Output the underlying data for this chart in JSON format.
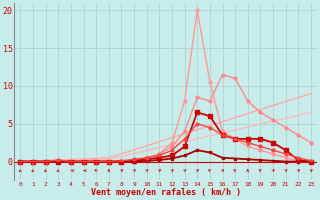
{
  "xlabel": "Vent moyen/en rafales ( km/h )",
  "xlim": [
    -0.5,
    23.5
  ],
  "ylim": [
    -2.5,
    21
  ],
  "yticks": [
    0,
    5,
    10,
    15,
    20
  ],
  "xticks": [
    0,
    1,
    2,
    3,
    4,
    5,
    6,
    7,
    8,
    9,
    10,
    11,
    12,
    13,
    14,
    15,
    16,
    17,
    18,
    19,
    20,
    21,
    22,
    23
  ],
  "bg_color": "#c8ecea",
  "grid_color": "#a8d0ce",
  "lines": [
    {
      "x": [
        0,
        7,
        23
      ],
      "y": [
        0,
        0.5,
        9.0
      ],
      "color": "#ffaaaa",
      "lw": 1.0,
      "marker": null,
      "ms": 0,
      "alpha": 1.0
    },
    {
      "x": [
        0,
        7,
        23
      ],
      "y": [
        0,
        0.3,
        6.5
      ],
      "color": "#ffbbbb",
      "lw": 1.0,
      "marker": null,
      "ms": 0,
      "alpha": 1.0
    },
    {
      "x": [
        0,
        1,
        2,
        3,
        4,
        5,
        6,
        7,
        8,
        9,
        10,
        11,
        12,
        13,
        14,
        15,
        16,
        17,
        18,
        19,
        20,
        21,
        22,
        23
      ],
      "y": [
        0,
        0,
        0,
        0,
        0,
        0,
        0,
        0,
        0,
        0.2,
        0.5,
        1.0,
        2.5,
        8.0,
        20.0,
        10.5,
        4.0,
        3.0,
        2.0,
        1.5,
        1.0,
        0.5,
        0.1,
        0
      ],
      "color": "#ff9999",
      "lw": 1.0,
      "marker": "o",
      "ms": 2.0,
      "alpha": 1.0
    },
    {
      "x": [
        0,
        1,
        2,
        3,
        4,
        5,
        6,
        7,
        8,
        9,
        10,
        11,
        12,
        13,
        14,
        15,
        16,
        17,
        18,
        19,
        20,
        21,
        22,
        23
      ],
      "y": [
        0,
        0,
        0,
        0,
        0,
        0,
        0,
        0,
        0,
        0.2,
        0.5,
        1.0,
        2.0,
        4.0,
        8.5,
        8.0,
        11.5,
        11.0,
        8.0,
        6.5,
        5.5,
        4.5,
        3.5,
        2.5
      ],
      "color": "#ff8888",
      "lw": 1.0,
      "marker": "o",
      "ms": 2.0,
      "alpha": 1.0
    },
    {
      "x": [
        0,
        1,
        2,
        3,
        4,
        5,
        6,
        7,
        8,
        9,
        10,
        11,
        12,
        13,
        14,
        15,
        16,
        17,
        18,
        19,
        20,
        21,
        22,
        23
      ],
      "y": [
        0,
        0,
        0,
        0,
        0,
        0,
        0,
        0,
        0,
        0.1,
        0.3,
        0.5,
        0.8,
        2.0,
        6.5,
        6.0,
        3.5,
        3.0,
        3.0,
        3.0,
        2.5,
        1.5,
        0.2,
        0
      ],
      "color": "#cc0000",
      "lw": 1.3,
      "marker": "s",
      "ms": 2.5,
      "alpha": 1.0
    },
    {
      "x": [
        0,
        1,
        2,
        3,
        4,
        5,
        6,
        7,
        8,
        9,
        10,
        11,
        12,
        13,
        14,
        15,
        16,
        17,
        18,
        19,
        20,
        21,
        22,
        23
      ],
      "y": [
        0,
        0,
        0,
        0,
        0,
        0,
        0,
        0,
        0,
        0,
        0.1,
        0.2,
        0.4,
        0.8,
        1.5,
        1.2,
        0.5,
        0.4,
        0.3,
        0.2,
        0.1,
        0,
        0,
        0
      ],
      "color": "#aa0000",
      "lw": 1.3,
      "marker": "s",
      "ms": 2.0,
      "alpha": 1.0
    },
    {
      "x": [
        0,
        1,
        2,
        3,
        4,
        5,
        6,
        7,
        8,
        9,
        10,
        11,
        12,
        13,
        14,
        15,
        16,
        17,
        18,
        19,
        20,
        21,
        22,
        23
      ],
      "y": [
        0,
        0,
        0,
        0.2,
        0,
        0,
        0,
        0,
        0.1,
        0.3,
        0.5,
        0.8,
        1.5,
        3.0,
        5.0,
        4.5,
        3.5,
        3.0,
        2.5,
        2.0,
        1.5,
        1.0,
        0.5,
        0.1
      ],
      "color": "#ff4444",
      "lw": 1.0,
      "marker": "o",
      "ms": 2.0,
      "alpha": 1.0
    }
  ],
  "arrow_angles": [
    225,
    225,
    225,
    225,
    270,
    270,
    315,
    0,
    45,
    45,
    45,
    45,
    45,
    45,
    45,
    315,
    45,
    315,
    0,
    315,
    45,
    45,
    45,
    45
  ],
  "arrow_color": "#cc0000"
}
